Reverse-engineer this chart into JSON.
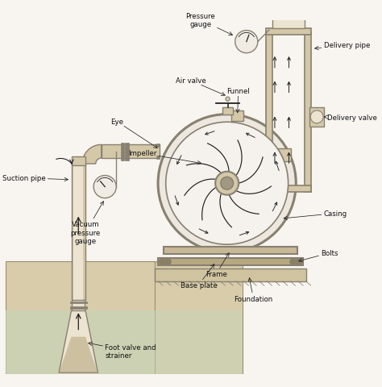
{
  "bg_color": "#f8f5f0",
  "water_color": "#c8d4b8",
  "ground_color": "#d8ccaa",
  "pipe_fill": "#d4c8a8",
  "pipe_edge": "#888070",
  "line_color": "#222222",
  "text_color": "#111111",
  "gauge_fill": "#f0ece4",
  "labels": {
    "pressure_gauge": "Pressure\ngauge",
    "air_valve": "Air valve",
    "eye": "Eye",
    "impeller": "Impeller",
    "funnel": "Funnel",
    "delivery_pipe": "Delivery pipe",
    "delivery_valve": "Delivery valve",
    "casing": "Casing",
    "frame": "Frame",
    "bolts": "Bolts",
    "base_plate": "Base plate",
    "foundation": "Foundation",
    "suction_pipe": "Suction pipe",
    "vacuum_gauge": "Vacuum\npressure\ngauge",
    "foot_valve": "Foot valve and\nstrainer"
  },
  "figsize": [
    4.74,
    4.81
  ],
  "dpi": 100
}
